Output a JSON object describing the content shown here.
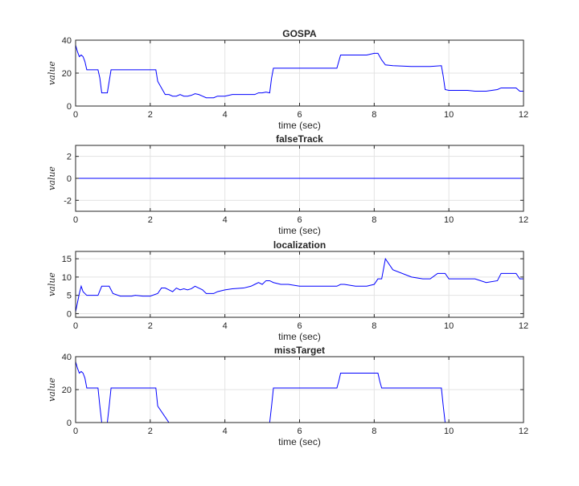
{
  "chart_data": [
    {
      "type": "line",
      "title": "GOSPA",
      "xlabel": "time (sec)",
      "ylabel": "value",
      "xlim": [
        0,
        12
      ],
      "ylim": [
        0,
        40
      ],
      "xticks": [
        0,
        2,
        4,
        6,
        8,
        10,
        12
      ],
      "yticks": [
        0,
        20,
        40
      ],
      "grid": true,
      "color": "#0000ff",
      "x": [
        0,
        0.05,
        0.1,
        0.15,
        0.2,
        0.25,
        0.3,
        0.35,
        0.4,
        0.5,
        0.6,
        0.65,
        0.7,
        0.75,
        0.8,
        0.85,
        0.9,
        0.95,
        1.0,
        1.1,
        1.5,
        2.0,
        2.1,
        2.15,
        2.2,
        2.4,
        2.5,
        2.6,
        2.7,
        2.8,
        2.9,
        3.0,
        3.1,
        3.2,
        3.3,
        3.4,
        3.5,
        3.6,
        3.7,
        3.8,
        4.0,
        4.2,
        4.4,
        4.6,
        4.8,
        4.9,
        5.0,
        5.1,
        5.2,
        5.25,
        5.3,
        5.5,
        6.0,
        6.5,
        7.0,
        7.05,
        7.1,
        7.5,
        7.8,
        8.0,
        8.1,
        8.2,
        8.3,
        8.5,
        9.0,
        9.5,
        9.8,
        9.85,
        9.9,
        10.0,
        10.5,
        10.7,
        11.0,
        11.3,
        11.4,
        11.8,
        11.9,
        12.0
      ],
      "y": [
        37,
        33,
        30,
        31,
        30,
        27,
        22,
        22,
        22,
        22,
        22,
        17,
        8,
        8,
        8,
        8,
        15,
        22,
        22,
        22,
        22,
        22,
        22,
        22,
        15,
        7,
        7,
        6,
        6,
        7,
        6,
        6,
        6.5,
        7.5,
        7,
        6,
        5,
        5,
        5,
        6,
        6,
        7,
        7,
        7,
        7,
        8,
        8,
        8.5,
        8,
        17,
        23,
        23,
        23,
        23,
        23,
        27,
        31,
        31,
        31,
        32,
        32,
        28,
        25,
        24.5,
        24,
        24,
        24.5,
        18,
        10,
        9.5,
        9.5,
        9,
        9,
        10,
        11,
        11,
        9,
        9
      ]
    },
    {
      "type": "line",
      "title": "falseTrack",
      "xlabel": "time (sec)",
      "ylabel": "value",
      "xlim": [
        0,
        12
      ],
      "ylim": [
        -3,
        3
      ],
      "xticks": [
        0,
        2,
        4,
        6,
        8,
        10,
        12
      ],
      "yticks": [
        -2,
        0,
        2
      ],
      "grid": true,
      "color": "#0000ff",
      "x": [
        0,
        12
      ],
      "y": [
        0,
        0
      ]
    },
    {
      "type": "line",
      "title": "localization",
      "xlabel": "time (sec)",
      "ylabel": "value",
      "xlim": [
        0,
        12
      ],
      "ylim": [
        -1,
        17
      ],
      "xticks": [
        0,
        2,
        4,
        6,
        8,
        10,
        12
      ],
      "yticks": [
        0,
        5,
        10,
        15
      ],
      "grid": true,
      "color": "#0000ff",
      "x": [
        0,
        0.05,
        0.1,
        0.15,
        0.2,
        0.3,
        0.4,
        0.6,
        0.7,
        0.8,
        0.9,
        1.0,
        1.2,
        1.5,
        1.6,
        1.8,
        2.0,
        2.2,
        2.3,
        2.4,
        2.5,
        2.6,
        2.7,
        2.8,
        2.9,
        3.0,
        3.1,
        3.2,
        3.3,
        3.4,
        3.5,
        3.6,
        3.7,
        3.8,
        4.0,
        4.2,
        4.5,
        4.7,
        4.8,
        4.9,
        5.0,
        5.1,
        5.2,
        5.3,
        5.5,
        5.7,
        6.0,
        6.2,
        6.5,
        6.7,
        7.0,
        7.1,
        7.2,
        7.5,
        7.8,
        8.0,
        8.1,
        8.2,
        8.3,
        8.5,
        9.0,
        9.3,
        9.5,
        9.7,
        9.9,
        10.0,
        10.5,
        10.7,
        11.0,
        11.3,
        11.4,
        11.8,
        11.9,
        12.0
      ],
      "y": [
        0.5,
        3,
        5.5,
        7.5,
        6,
        5,
        5,
        5,
        7.5,
        7.5,
        7.5,
        5.5,
        4.8,
        4.8,
        5,
        4.8,
        4.8,
        5.5,
        7,
        7,
        6.5,
        6,
        7,
        6.5,
        6.8,
        6.5,
        6.8,
        7.5,
        7,
        6.5,
        5.5,
        5.5,
        5.5,
        6,
        6.5,
        6.8,
        7,
        7.5,
        8,
        8.5,
        8,
        9,
        9,
        8.5,
        8,
        8,
        7.5,
        7.5,
        7.5,
        7.5,
        7.5,
        8,
        8,
        7.5,
        7.5,
        8,
        9.5,
        9.5,
        15,
        12,
        10,
        9.5,
        9.5,
        11,
        11,
        9.5,
        9.5,
        9.5,
        8.5,
        9,
        11,
        11,
        9.5,
        9.5
      ]
    },
    {
      "type": "line",
      "title": "missTarget",
      "xlabel": "time (sec)",
      "ylabel": "value",
      "xlim": [
        0,
        12
      ],
      "ylim": [
        0,
        40
      ],
      "xticks": [
        0,
        2,
        4,
        6,
        8,
        10,
        12
      ],
      "yticks": [
        0,
        20,
        40
      ],
      "grid": true,
      "color": "#0000ff",
      "x": [
        0,
        0.05,
        0.1,
        0.15,
        0.2,
        0.25,
        0.3,
        0.35,
        0.4,
        0.5,
        0.6,
        0.65,
        0.7,
        0.75,
        0.8,
        0.85,
        0.9,
        0.95,
        1.0,
        1.5,
        2.0,
        2.1,
        2.15,
        2.2,
        2.5,
        4.0,
        5.0,
        5.2,
        5.25,
        5.3,
        5.5,
        6.0,
        6.5,
        7.0,
        7.05,
        7.1,
        7.5,
        8.0,
        8.1,
        8.15,
        8.2,
        8.5,
        9.0,
        9.5,
        9.8,
        9.85,
        9.9,
        10.0,
        11.0,
        12.0
      ],
      "y": [
        37,
        33,
        30,
        31,
        30,
        27,
        21,
        21,
        21,
        21,
        21,
        10,
        0,
        0,
        0,
        0,
        10,
        21,
        21,
        21,
        21,
        21,
        21,
        10,
        0,
        0,
        0,
        0,
        10,
        21,
        21,
        21,
        21,
        21,
        25,
        30,
        30,
        30,
        30,
        25,
        21,
        21,
        21,
        21,
        21,
        10,
        0,
        0,
        0,
        0
      ]
    }
  ]
}
